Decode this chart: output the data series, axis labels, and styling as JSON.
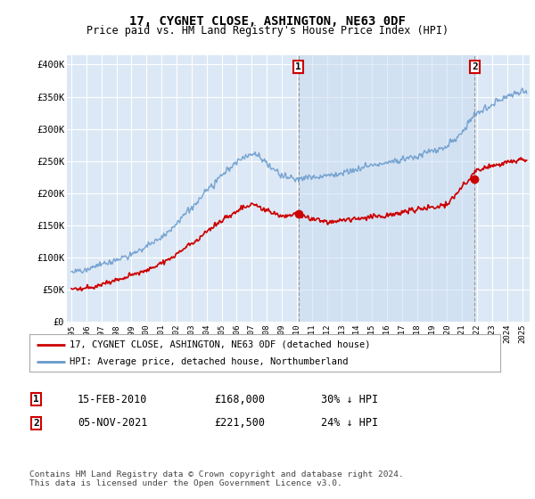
{
  "title": "17, CYGNET CLOSE, ASHINGTON, NE63 0DF",
  "subtitle": "Price paid vs. HM Land Registry's House Price Index (HPI)",
  "ylabel_ticks": [
    "£0",
    "£50K",
    "£100K",
    "£150K",
    "£200K",
    "£250K",
    "£300K",
    "£350K",
    "£400K"
  ],
  "ytick_values": [
    0,
    50000,
    100000,
    150000,
    200000,
    250000,
    300000,
    350000,
    400000
  ],
  "ylim": [
    0,
    415000
  ],
  "xlim_start": 1994.7,
  "xlim_end": 2025.5,
  "fig_bg_color": "#ffffff",
  "plot_bg_color": "#dce8f5",
  "grid_color": "#ffffff",
  "shade_color": "#c8dbf0",
  "hpi_line_color": "#6699cc",
  "price_line_color": "#cc0000",
  "sale1_date": "15-FEB-2010",
  "sale1_price": "£168,000",
  "sale1_pct": "30% ↓ HPI",
  "sale1_x": 2010.12,
  "sale1_y": 168000,
  "sale2_date": "05-NOV-2021",
  "sale2_price": "£221,500",
  "sale2_pct": "24% ↓ HPI",
  "sale2_x": 2021.84,
  "sale2_y": 221500,
  "legend_label_price": "17, CYGNET CLOSE, ASHINGTON, NE63 0DF (detached house)",
  "legend_label_hpi": "HPI: Average price, detached house, Northumberland",
  "footer": "Contains HM Land Registry data © Crown copyright and database right 2024.\nThis data is licensed under the Open Government Licence v3.0.",
  "xtick_years": [
    1995,
    1996,
    1997,
    1998,
    1999,
    2000,
    2001,
    2002,
    2003,
    2004,
    2005,
    2006,
    2007,
    2008,
    2009,
    2010,
    2011,
    2012,
    2013,
    2014,
    2015,
    2016,
    2017,
    2018,
    2019,
    2020,
    2021,
    2022,
    2023,
    2024,
    2025
  ],
  "hpi_keypoints_x": [
    1995,
    1996,
    1997,
    1998,
    1999,
    2000,
    2001,
    2002,
    2003,
    2004,
    2005,
    2006,
    2007,
    2007.5,
    2008,
    2009,
    2010,
    2011,
    2012,
    2013,
    2014,
    2015,
    2016,
    2017,
    2018,
    2019,
    2020,
    2021,
    2021.5,
    2022,
    2023,
    2024,
    2025
  ],
  "hpi_keypoints_y": [
    78000,
    83000,
    89000,
    96000,
    105000,
    118000,
    132000,
    152000,
    178000,
    205000,
    228000,
    248000,
    262000,
    258000,
    245000,
    228000,
    222000,
    225000,
    228000,
    232000,
    238000,
    245000,
    248000,
    252000,
    258000,
    265000,
    272000,
    295000,
    310000,
    325000,
    338000,
    350000,
    360000
  ],
  "price_keypoints_x": [
    1995,
    1996,
    1997,
    1998,
    1999,
    2000,
    2001,
    2002,
    2003,
    2004,
    2005,
    2006,
    2007,
    2007.5,
    2008,
    2009,
    2010,
    2011,
    2012,
    2013,
    2014,
    2015,
    2016,
    2017,
    2018,
    2019,
    2020,
    2021,
    2021.5,
    2022,
    2023,
    2024,
    2025
  ],
  "price_keypoints_y": [
    50000,
    53000,
    58000,
    64000,
    72000,
    80000,
    90000,
    105000,
    122000,
    140000,
    158000,
    172000,
    183000,
    180000,
    172000,
    165000,
    168000,
    160000,
    155000,
    157000,
    160000,
    163000,
    166000,
    170000,
    175000,
    178000,
    182000,
    210000,
    221500,
    235000,
    242000,
    248000,
    252000
  ]
}
